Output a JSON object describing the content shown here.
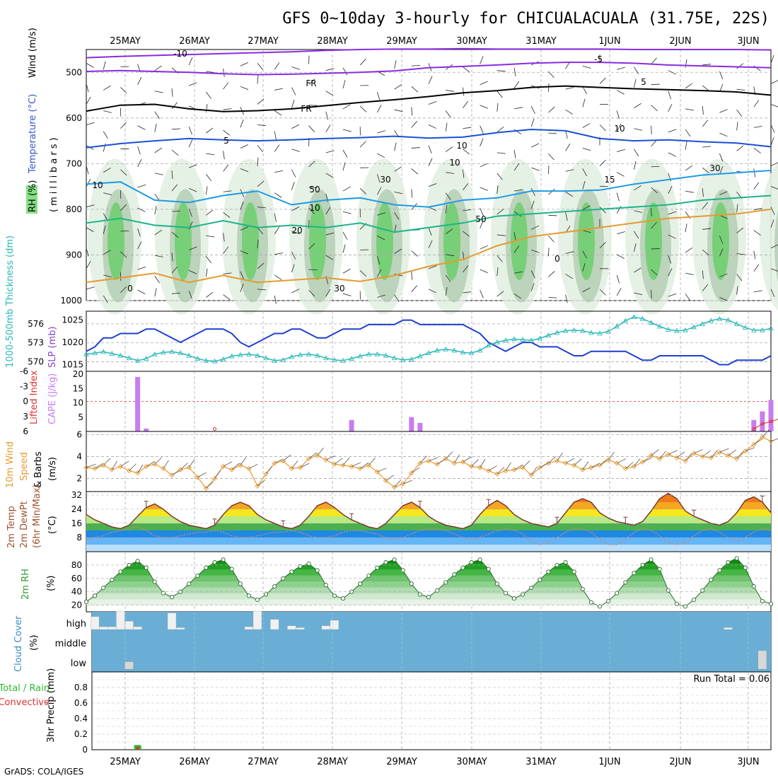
{
  "title": "GFS 0~10day 3-hourly for CHICUALACUALA (31.75E, 22S)",
  "footer": "GrADS: COLA/IGES",
  "dates": [
    "25MAY",
    "26MAY",
    "27MAY",
    "28MAY",
    "29MAY",
    "30MAY",
    "31MAY",
    "1JUN",
    "2JUN",
    "3JUN"
  ],
  "colors": {
    "wind5": "#8a2be2",
    "freeze": "#000000",
    "t5": "#1a4fd6",
    "t10": "#1e9be6",
    "t15": "#1db48a",
    "t20": "#e69a2e",
    "t25": "#d61a8a",
    "slp": "#1f3fcf",
    "thick": "#2bb8b8",
    "cape": "#c77df0",
    "li": "#e03030",
    "wind10m": "#e89a30",
    "rh": "#2e9e2e",
    "cloud": "#6aaed6",
    "cloudbar": "#f0f0f0"
  },
  "chart_data": [
    {
      "type": "heatmap",
      "panel": "upper-air",
      "ylabel_parts": [
        "RH (%)",
        "Temperature (°C)",
        "Wind (m/s)"
      ],
      "yaxis_label": "(millibars)",
      "yticks": [
        500,
        600,
        700,
        800,
        900,
        1000
      ],
      "ylim": [
        1000,
        450
      ],
      "contour_labels": [
        "-10",
        "-5",
        "FR",
        "FR",
        "5",
        "5",
        "10",
        "10",
        "10",
        "15",
        "20",
        "0",
        "0",
        "30",
        "30",
        "50",
        "50",
        "10",
        "10",
        "30"
      ],
      "contours": [
        {
          "name": "-10",
          "level": "-10",
          "p": [
            468,
            465,
            463,
            461,
            459,
            457,
            455,
            452,
            450,
            449,
            449,
            448,
            449,
            449,
            449,
            449,
            450,
            450,
            450,
            450,
            451
          ]
        },
        {
          "name": "-5",
          "level": "-5",
          "p": [
            498,
            496,
            498,
            500,
            503,
            505,
            504,
            502,
            500,
            497,
            490,
            487,
            484,
            480,
            478,
            478,
            480,
            484,
            486,
            488,
            490
          ]
        },
        {
          "name": "FR",
          "level": "FR",
          "p": [
            585,
            572,
            570,
            580,
            586,
            584,
            580,
            573,
            566,
            560,
            553,
            545,
            540,
            533,
            530,
            533,
            536,
            538,
            540,
            543,
            550
          ]
        },
        {
          "name": "5",
          "level": "5",
          "p": [
            665,
            656,
            650,
            645,
            648,
            650,
            648,
            645,
            643,
            640,
            644,
            642,
            632,
            625,
            628,
            645,
            650,
            648,
            652,
            655,
            663
          ]
        },
        {
          "name": "10",
          "level": "10",
          "p": [
            745,
            740,
            780,
            785,
            770,
            760,
            790,
            780,
            775,
            790,
            795,
            780,
            775,
            760,
            760,
            758,
            745,
            735,
            725,
            720,
            715
          ]
        },
        {
          "name": "15",
          "level": "15",
          "p": [
            830,
            820,
            835,
            840,
            825,
            840,
            835,
            840,
            830,
            850,
            840,
            830,
            815,
            810,
            805,
            800,
            795,
            790,
            780,
            775,
            770
          ]
        },
        {
          "name": "20",
          "level": "20",
          "p": [
            960,
            950,
            940,
            960,
            945,
            960,
            955,
            950,
            958,
            945,
            925,
            910,
            880,
            860,
            850,
            840,
            830,
            820,
            815,
            810,
            800
          ]
        }
      ]
    },
    {
      "type": "line",
      "panel": "slp-thickness",
      "x_hours_step": 3,
      "series": [
        {
          "name": "SLP (mb)",
          "axis": "right",
          "values": [
            1018,
            1019,
            1021,
            1021,
            1022,
            1022,
            1022,
            1023,
            1023,
            1022,
            1021,
            1020,
            1021,
            1022,
            1023,
            1023,
            1023,
            1022,
            1020,
            1019,
            1020,
            1021,
            1022,
            1022,
            1023,
            1023,
            1022,
            1021,
            1021,
            1022,
            1023,
            1023,
            1023,
            1024,
            1024,
            1024,
            1024,
            1025,
            1025,
            1024,
            1024,
            1024,
            1024,
            1024,
            1024,
            1023,
            1022,
            1020,
            1019,
            1018,
            1019,
            1020,
            1020,
            1019,
            1019,
            1019,
            1018,
            1017,
            1017,
            1018,
            1018,
            1018,
            1018,
            1018,
            1017,
            1016,
            1016,
            1017,
            1017,
            1017,
            1017,
            1017,
            1017,
            1016,
            1015,
            1015,
            1016,
            1016,
            1016,
            1016,
            1017
          ]
        },
        {
          "name": "Thickness 1000-500mb (dm)",
          "axis": "left",
          "values": [
            571.2,
            571.4,
            571.6,
            571.3,
            571.0,
            570.6,
            570.2,
            570.5,
            571.2,
            571.5,
            571.6,
            571.4,
            571.0,
            570.5,
            570.2,
            570.1,
            570.4,
            570.9,
            571.1,
            571.2,
            571.0,
            570.6,
            570.2,
            570.3,
            570.8,
            571.1,
            571.2,
            571.0,
            570.6,
            570.3,
            570.2,
            570.5,
            570.9,
            571.2,
            571.2,
            571.0,
            570.6,
            570.3,
            570.4,
            570.9,
            571.4,
            571.8,
            572.0,
            571.8,
            571.5,
            571.4,
            571.8,
            572.6,
            573.1,
            573.4,
            573.6,
            573.5,
            573.4,
            573.7,
            574.2,
            574.6,
            574.9,
            575.0,
            574.9,
            574.6,
            574.5,
            574.8,
            575.6,
            576.5,
            577.1,
            576.8,
            576.2,
            575.6,
            575.1,
            574.9,
            575.0,
            575.5,
            576.0,
            576.5,
            576.8,
            576.6,
            576.0,
            575.4,
            575.0,
            575.0,
            575.3
          ]
        }
      ],
      "left_yticks": [
        570,
        573,
        576
      ],
      "right_yticks": [
        1015,
        1020,
        1025
      ],
      "left_ylabel": "1000-500mb Thickness (dm)",
      "right_ylabel": "SLP (mb)"
    },
    {
      "type": "bar",
      "panel": "cape-li",
      "bar_series": {
        "name": "CAPE (J/kg)",
        "bars": [
          {
            "i": 6,
            "v": 19
          },
          {
            "i": 7,
            "v": 1
          },
          {
            "i": 31,
            "v": 4
          },
          {
            "i": 38,
            "v": 5
          },
          {
            "i": 39,
            "v": 3
          },
          {
            "i": 78,
            "v": 4
          },
          {
            "i": 79,
            "v": 7
          },
          {
            "i": 80,
            "v": 11
          }
        ]
      },
      "li_series": {
        "name": "Lifted Index",
        "points": [
          {
            "i": 15,
            "v": 5.5
          },
          {
            "i": 78,
            "v": 5.5
          },
          {
            "i": 79,
            "v": 4.5
          },
          {
            "i": 80,
            "v": 4
          },
          {
            "i": 81,
            "v": 3.5
          }
        ]
      },
      "cape_yticks": [
        5,
        10,
        15,
        20
      ],
      "li_yticks": [
        -6,
        -3,
        0,
        3,
        6
      ],
      "li_ylabel": "Lifted Index",
      "cape_ylabel": "CAPE (J/kg)"
    },
    {
      "type": "line",
      "panel": "wind10m",
      "ylabel": "10m Wind Speed & Barbs (m/s)",
      "yticks": [
        2,
        4,
        6
      ],
      "ylim": [
        0.8,
        6.3
      ],
      "series": [
        {
          "name": "10m Wind Speed",
          "values": [
            3.0,
            2.9,
            3.2,
            2.8,
            3.1,
            2.7,
            2.5,
            3.1,
            3.3,
            2.9,
            2.3,
            2.8,
            3.0,
            2.1,
            1.1,
            2.0,
            3.1,
            2.8,
            3.2,
            2.9,
            1.3,
            2.4,
            3.4,
            3.6,
            2.9,
            3.0,
            3.8,
            4.1,
            3.7,
            3.3,
            3.2,
            3.1,
            2.9,
            3.2,
            2.6,
            1.8,
            1.2,
            1.5,
            2.5,
            3.4,
            3.6,
            3.3,
            3.8,
            3.4,
            3.5,
            3.1,
            3.0,
            2.7,
            2.4,
            2.7,
            2.8,
            3.0,
            2.3,
            3.0,
            3.4,
            3.6,
            3.4,
            3.2,
            2.8,
            3.0,
            3.2,
            3.7,
            3.4,
            2.9,
            3.1,
            3.5,
            4.1,
            3.8,
            4.2,
            3.9,
            3.6,
            4.3,
            4.0,
            3.9,
            4.4,
            4.1,
            3.8,
            4.5,
            5.1,
            5.8,
            5.4
          ]
        }
      ]
    },
    {
      "type": "area",
      "panel": "temp2m",
      "ylabel": "2m Temp 2m DewPt (6hr Min/Max) (°C)",
      "yticks": [
        8,
        16,
        24,
        32
      ],
      "ylim": [
        0,
        34
      ],
      "series": [
        {
          "name": "2m Temp",
          "values": [
            21,
            18,
            16,
            14,
            13,
            15,
            20,
            25,
            27,
            24,
            20,
            17,
            15,
            14,
            13,
            15,
            21,
            26,
            28,
            26,
            21,
            18,
            16,
            14,
            13,
            15,
            20,
            26,
            28,
            25,
            21,
            18,
            16,
            14,
            13,
            16,
            21,
            26,
            28,
            25,
            20,
            17,
            15,
            14,
            13,
            15,
            21,
            26,
            29,
            26,
            21,
            18,
            16,
            15,
            14,
            16,
            22,
            28,
            30,
            28,
            22,
            19,
            17,
            16,
            15,
            17,
            23,
            30,
            33,
            30,
            23,
            20,
            18,
            16,
            15,
            17,
            22,
            29,
            31,
            28,
            22
          ]
        },
        {
          "name": "2m DewPt",
          "values": [
            7,
            8,
            9,
            11,
            12,
            13,
            14,
            12,
            9,
            8,
            8,
            9,
            10,
            11,
            11,
            12,
            11,
            9,
            8,
            8,
            9,
            10,
            11,
            11,
            12,
            11,
            9,
            8,
            8,
            9,
            11,
            12,
            12,
            11,
            10,
            8,
            7,
            8,
            10,
            12,
            13,
            13,
            12,
            10,
            8,
            7,
            8,
            10,
            12,
            13,
            12,
            10,
            6,
            4,
            5,
            8,
            11,
            13,
            13,
            11,
            7,
            4,
            4,
            7,
            11,
            13,
            12,
            9,
            5,
            4,
            5,
            9,
            12,
            13,
            11,
            8,
            6,
            8,
            11,
            13,
            12
          ]
        }
      ]
    },
    {
      "type": "area",
      "panel": "rh2m",
      "ylabel": "2m RH (%)",
      "yticks": [
        20,
        40,
        60,
        80
      ],
      "ylim": [
        10,
        100
      ],
      "series": [
        {
          "name": "2m RH",
          "values": [
            25,
            34,
            46,
            58,
            70,
            80,
            86,
            76,
            55,
            38,
            32,
            40,
            52,
            64,
            76,
            84,
            88,
            74,
            52,
            34,
            28,
            36,
            48,
            60,
            70,
            78,
            82,
            72,
            50,
            34,
            30,
            40,
            52,
            64,
            76,
            84,
            88,
            72,
            52,
            36,
            32,
            42,
            54,
            66,
            76,
            84,
            88,
            74,
            52,
            38,
            30,
            36,
            46,
            58,
            70,
            80,
            84,
            70,
            44,
            24,
            18,
            26,
            38,
            54,
            68,
            80,
            88,
            74,
            42,
            22,
            18,
            28,
            42,
            58,
            72,
            84,
            90,
            76,
            48,
            26,
            22
          ]
        }
      ]
    },
    {
      "type": "bar",
      "panel": "cloud",
      "ylabel": "Cloud Cover (%)",
      "levels": [
        "high",
        "middle",
        "low"
      ],
      "high_bars": [
        {
          "i": 1,
          "v": 0.7
        },
        {
          "i": 2,
          "v": 0.15
        },
        {
          "i": 3,
          "v": 0.15
        },
        {
          "i": 4,
          "v": 1.0
        },
        {
          "i": 5,
          "v": 0.45
        },
        {
          "i": 6,
          "v": 0.15
        },
        {
          "i": 10,
          "v": 0.9
        },
        {
          "i": 11,
          "v": 0.1
        },
        {
          "i": 19,
          "v": 0.15
        },
        {
          "i": 20,
          "v": 1.0
        },
        {
          "i": 22,
          "v": 0.55
        },
        {
          "i": 24,
          "v": 0.2
        },
        {
          "i": 25,
          "v": 0.1
        },
        {
          "i": 28,
          "v": 0.2
        },
        {
          "i": 29,
          "v": 0.5
        },
        {
          "i": 75,
          "v": 0.1
        }
      ],
      "low_bars": [
        {
          "i": 5,
          "v": 0.4
        },
        {
          "i": 79,
          "v": 1.0
        }
      ]
    },
    {
      "type": "bar",
      "panel": "precip",
      "ylabel": "3hr Precip (mm)",
      "left_label": "Total / Rain",
      "left_label2": "Convective",
      "yticks": [
        0,
        0.2,
        0.4,
        0.6,
        0.8
      ],
      "ylim": [
        0,
        1.0
      ],
      "run_total": "Run Total = 0.06",
      "bars": [
        {
          "i": 6,
          "total": 0.06,
          "conv": 0.04
        }
      ]
    }
  ]
}
